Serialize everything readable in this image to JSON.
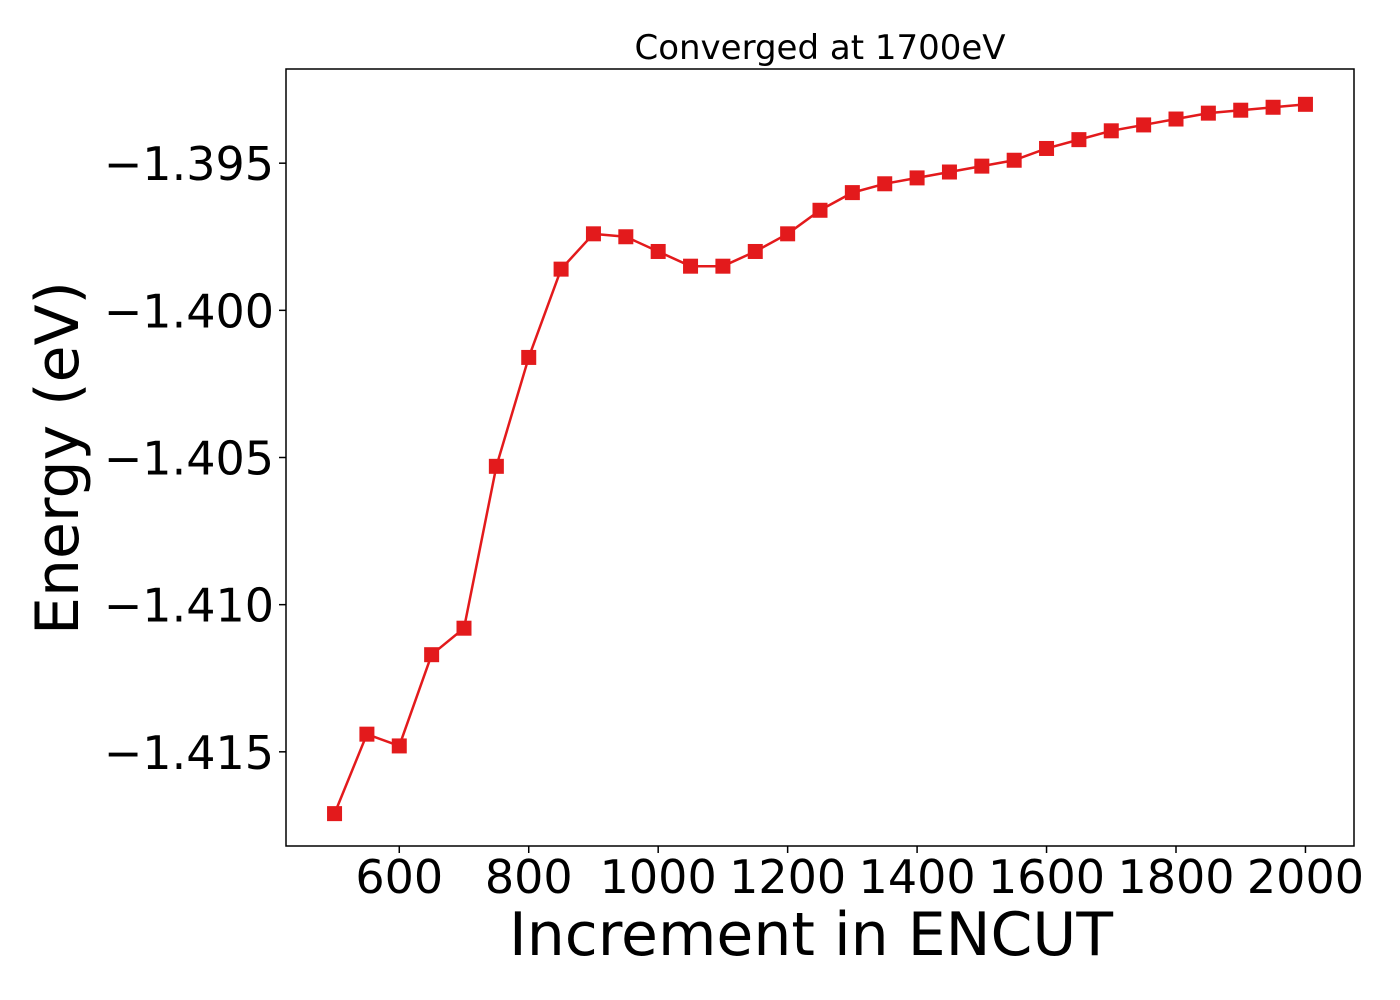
{
  "chart_data": {
    "type": "line",
    "title": "Converged at 1700eV",
    "xlabel": "Increment in ENCUT",
    "ylabel": "Energy (eV)",
    "xlim": [
      425,
      2075
    ],
    "ylim": [
      -1.4182,
      -1.3918
    ],
    "grid": false,
    "legend": "none",
    "x_ticks": [
      {
        "value": 600,
        "label": "600"
      },
      {
        "value": 800,
        "label": "800"
      },
      {
        "value": 1000,
        "label": "1000"
      },
      {
        "value": 1200,
        "label": "1200"
      },
      {
        "value": 1400,
        "label": "1400"
      },
      {
        "value": 1600,
        "label": "1600"
      },
      {
        "value": 1800,
        "label": "1800"
      },
      {
        "value": 2000,
        "label": "2000"
      }
    ],
    "y_ticks": [
      {
        "value": -1.395,
        "label": "−1.395"
      },
      {
        "value": -1.4,
        "label": "−1.400"
      },
      {
        "value": -1.405,
        "label": "−1.405"
      },
      {
        "value": -1.41,
        "label": "−1.410"
      },
      {
        "value": -1.415,
        "label": "−1.415"
      }
    ],
    "series": [
      {
        "color": "#e31a1c",
        "marker": "square",
        "x": [
          500,
          550,
          600,
          650,
          700,
          750,
          800,
          850,
          900,
          950,
          1000,
          1050,
          1100,
          1150,
          1200,
          1250,
          1300,
          1350,
          1400,
          1450,
          1500,
          1550,
          1600,
          1650,
          1700,
          1750,
          1800,
          1850,
          1900,
          1950,
          2000
        ],
        "y": [
          -1.4171,
          -1.4144,
          -1.4148,
          -1.4117,
          -1.4108,
          -1.4053,
          -1.4016,
          -1.3986,
          -1.3974,
          -1.3975,
          -1.398,
          -1.3985,
          -1.3985,
          -1.398,
          -1.3974,
          -1.3966,
          -1.396,
          -1.3957,
          -1.3955,
          -1.3953,
          -1.3951,
          -1.3949,
          -1.3945,
          -1.3942,
          -1.3939,
          -1.3937,
          -1.3935,
          -1.3933,
          -1.3932,
          -1.3931,
          -1.393
        ]
      }
    ]
  }
}
